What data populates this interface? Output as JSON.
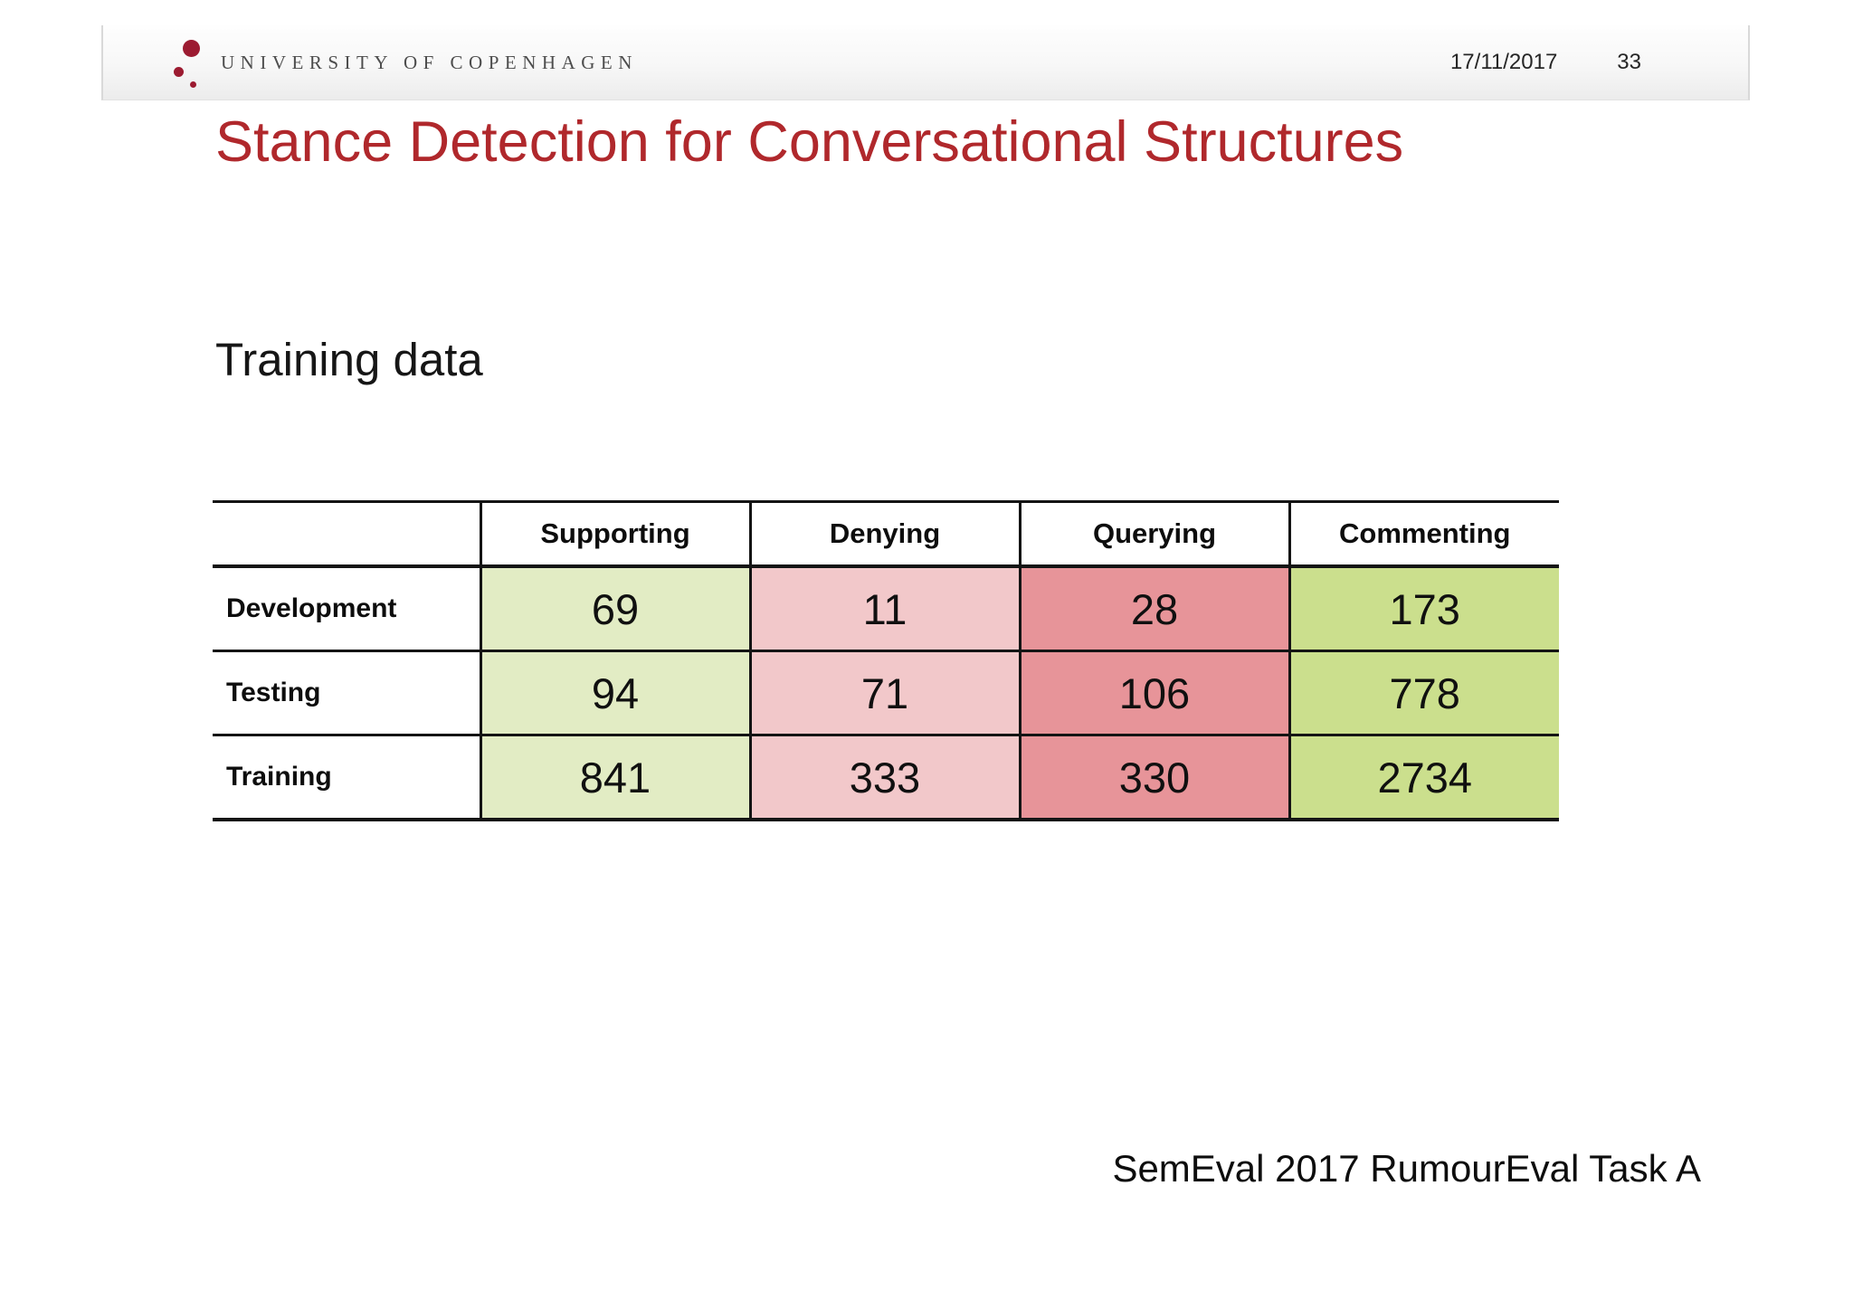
{
  "header": {
    "university": "UNIVERSITY OF COPENHAGEN",
    "date": "17/11/2017",
    "page_number": "33",
    "logo_color": "#9c1b31"
  },
  "slide": {
    "title": "Stance Detection for Conversational Structures",
    "title_color": "#b0282c",
    "subtitle": "Training data",
    "footer": "SemEval 2017 RumourEval Task A"
  },
  "chart_data": {
    "type": "table",
    "columns": [
      "",
      "Supporting",
      "Denying",
      "Querying",
      "Commenting"
    ],
    "column_colors": [
      "#ffffff",
      "#e2ecc4",
      "#f2c8ca",
      "#e79499",
      "#cbdf8d"
    ],
    "rows": [
      {
        "label": "Development",
        "values": [
          69,
          11,
          28,
          173
        ]
      },
      {
        "label": "Testing",
        "values": [
          94,
          71,
          106,
          778
        ]
      },
      {
        "label": "Training",
        "values": [
          841,
          333,
          330,
          2734
        ]
      }
    ]
  }
}
